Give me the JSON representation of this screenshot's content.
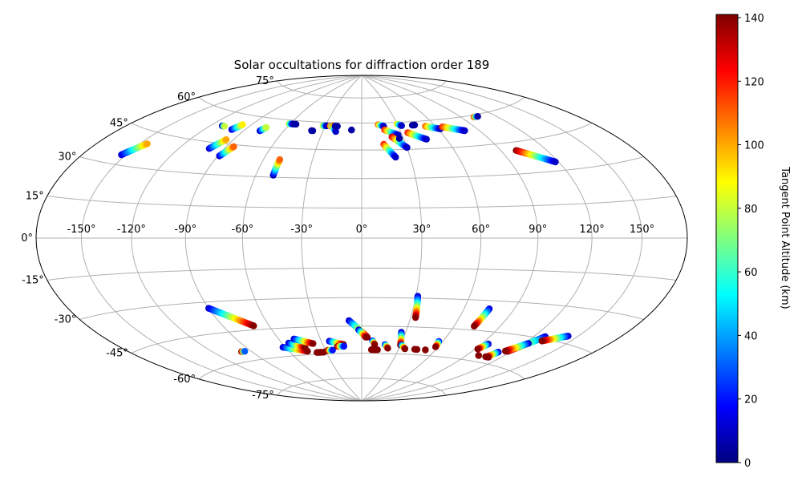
{
  "chart_data": {
    "type": "scatter",
    "projection": "hammer",
    "title": "Solar occultations for diffraction order 189",
    "xlabel": "",
    "ylabel": "",
    "grid": true,
    "lon_ticks": [
      -150,
      -120,
      -90,
      -60,
      -30,
      0,
      30,
      60,
      90,
      120,
      150
    ],
    "lon_tick_labels": [
      "-150°",
      "-120°",
      "-90°",
      "-60°",
      "-30°",
      "0°",
      "30°",
      "60°",
      "90°",
      "120°",
      "150°"
    ],
    "lat_ticks": [
      75,
      60,
      45,
      30,
      15,
      0,
      -15,
      -30,
      -45,
      -60,
      -75
    ],
    "lat_tick_labels": [
      "75°",
      "60°",
      "45°",
      "30°",
      "15°",
      "0°",
      "-15°",
      "-30°",
      "-45°",
      "-60°",
      "-75°"
    ],
    "colorbar": {
      "label": "Tangent Point Altitude (km)",
      "colormap": "jet",
      "range": [
        0,
        141
      ],
      "ticks": [
        0,
        20,
        40,
        60,
        80,
        100,
        120,
        140
      ],
      "tick_labels": [
        "0",
        "20",
        "40",
        "60",
        "80",
        "100",
        "120",
        "140"
      ]
    },
    "series": [
      {
        "lon_start": -153,
        "lat_start": 34,
        "lon_end": -145,
        "lat_end": 40,
        "alt_start": 10,
        "alt_end": 100
      },
      {
        "lon_start": -111,
        "lat_start": 53,
        "lon_end": -109,
        "lat_end": 53,
        "alt_start": 5,
        "alt_end": 80
      },
      {
        "lon_start": -100,
        "lat_start": 52,
        "lon_end": -97,
        "lat_end": 55,
        "alt_start": 10,
        "alt_end": 90
      },
      {
        "lon_start": -100,
        "lat_start": 42,
        "lon_end": -95,
        "lat_end": 47,
        "alt_start": 10,
        "alt_end": 100
      },
      {
        "lon_start": -89,
        "lat_start": 39,
        "lon_end": -85,
        "lat_end": 44,
        "alt_start": 10,
        "alt_end": 110
      },
      {
        "lon_start": -78,
        "lat_start": 53,
        "lon_end": -76,
        "lat_end": 55,
        "alt_start": 10,
        "alt_end": 80
      },
      {
        "lon_start": -61,
        "lat_start": 58,
        "lon_end": -58,
        "lat_end": 58,
        "alt_start": 80,
        "alt_end": 10
      },
      {
        "lon_start": -57,
        "lat_start": 58,
        "lon_end": -55,
        "lat_end": 58,
        "alt_start": 5,
        "alt_end": 5
      },
      {
        "lon_start": -50,
        "lat_start": 31,
        "lon_end": -50,
        "lat_end": 39,
        "alt_start": 5,
        "alt_end": 110
      },
      {
        "lon_start": -39,
        "lat_start": 55,
        "lon_end": -38,
        "lat_end": 55,
        "alt_start": 5,
        "alt_end": 5
      },
      {
        "lon_start": -32,
        "lat_start": 58,
        "lon_end": -29,
        "lat_end": 58,
        "alt_start": 80,
        "alt_end": 10
      },
      {
        "lon_start": -26,
        "lat_start": 58,
        "lon_end": -23,
        "lat_end": 58,
        "alt_start": 110,
        "alt_end": 5
      },
      {
        "lon_start": -24,
        "lat_start": 58,
        "lon_end": -20,
        "lat_end": 55,
        "alt_start": 110,
        "alt_end": 10
      },
      {
        "lon_start": -22,
        "lat_start": 58,
        "lon_end": -20,
        "lat_end": 58,
        "alt_start": 5,
        "alt_end": 5
      },
      {
        "lon_start": -8,
        "lat_start": 56,
        "lon_end": -8,
        "lat_end": 56,
        "alt_start": 5,
        "alt_end": 5
      },
      {
        "lon_start": 14,
        "lat_start": 59,
        "lon_end": 18,
        "lat_end": 58,
        "alt_start": 110,
        "alt_end": 10
      },
      {
        "lon_start": 18,
        "lat_start": 56,
        "lon_end": 27,
        "lat_end": 53,
        "alt_start": 120,
        "alt_end": 10
      },
      {
        "lon_start": 22,
        "lat_start": 52,
        "lon_end": 30,
        "lat_end": 46,
        "alt_start": 130,
        "alt_end": 10
      },
      {
        "lon_start": 15,
        "lat_start": 48,
        "lon_end": 21,
        "lat_end": 41,
        "alt_start": 120,
        "alt_end": 10
      },
      {
        "lon_start": 27,
        "lat_start": 51,
        "lon_end": 27,
        "lat_end": 51,
        "alt_start": 5,
        "alt_end": 5
      },
      {
        "lon_start": 30,
        "lat_start": 59,
        "lon_end": 33,
        "lat_end": 58,
        "alt_start": 90,
        "alt_end": 10
      },
      {
        "lon_start": 35,
        "lat_start": 54,
        "lon_end": 46,
        "lat_end": 50,
        "alt_start": 120,
        "alt_end": 10
      },
      {
        "lon_start": 42,
        "lat_start": 58,
        "lon_end": 44,
        "lat_end": 58,
        "alt_start": 5,
        "alt_end": 5
      },
      {
        "lon_start": 52,
        "lat_start": 57,
        "lon_end": 62,
        "lat_end": 55,
        "alt_start": 110,
        "alt_end": 10
      },
      {
        "lon_start": 65,
        "lat_start": 56,
        "lon_end": 79,
        "lat_end": 53,
        "alt_start": 120,
        "alt_end": 10
      },
      {
        "lon_start": 101,
        "lat_start": 59,
        "lon_end": 105,
        "lat_end": 59,
        "alt_start": 110,
        "alt_end": 5
      },
      {
        "lon_start": 100,
        "lat_start": 41,
        "lon_end": 118,
        "lat_end": 34,
        "alt_start": 140,
        "alt_end": 10
      },
      {
        "lon_start": -98,
        "lat_start": -55,
        "lon_end": -95,
        "lat_end": -55,
        "alt_start": 140,
        "alt_end": 30
      },
      {
        "lon_start": -90,
        "lat_start": -33,
        "lon_end": -70,
        "lat_end": -43,
        "alt_start": 10,
        "alt_end": 140
      },
      {
        "lon_start": -62,
        "lat_start": -55,
        "lon_end": -45,
        "lat_end": -58,
        "alt_start": 10,
        "alt_end": 140
      },
      {
        "lon_start": -55,
        "lat_start": -53,
        "lon_end": -45,
        "lat_end": -56,
        "alt_start": 10,
        "alt_end": 140
      },
      {
        "lon_start": -49,
        "lat_start": -51,
        "lon_end": -37,
        "lat_end": -54,
        "alt_start": 10,
        "alt_end": 140
      },
      {
        "lon_start": -38,
        "lat_start": -59,
        "lon_end": -32,
        "lat_end": -59,
        "alt_start": 140,
        "alt_end": 140
      },
      {
        "lon_start": -28,
        "lat_start": -58,
        "lon_end": -24,
        "lat_end": -58,
        "alt_start": 140,
        "alt_end": 20
      },
      {
        "lon_start": -24,
        "lat_start": -53,
        "lon_end": -14,
        "lat_end": -55,
        "alt_start": 10,
        "alt_end": 140
      },
      {
        "lon_start": -19,
        "lat_start": -56,
        "lon_end": -14,
        "lat_end": -56,
        "alt_start": 140,
        "alt_end": 20
      },
      {
        "lon_start": -8,
        "lat_start": -42,
        "lon_end": 4,
        "lat_end": -51,
        "alt_start": 10,
        "alt_end": 140
      },
      {
        "lon_start": -2,
        "lat_start": -47,
        "lon_end": 3,
        "lat_end": -51,
        "alt_start": 10,
        "alt_end": 140
      },
      {
        "lon_start": 8,
        "lat_start": -53,
        "lon_end": 10,
        "lat_end": -55,
        "alt_start": 20,
        "alt_end": 140
      },
      {
        "lon_start": 8,
        "lat_start": -58,
        "lon_end": 13,
        "lat_end": -58,
        "alt_start": 140,
        "alt_end": 140
      },
      {
        "lon_start": 18,
        "lat_start": -55,
        "lon_end": 21,
        "lat_end": -57,
        "alt_start": 20,
        "alt_end": 140
      },
      {
        "lon_start": 31,
        "lat_start": -29,
        "lon_end": 33,
        "lat_end": -40,
        "alt_start": 10,
        "alt_end": 140
      },
      {
        "lon_start": 27,
        "lat_start": -48,
        "lon_end": 30,
        "lat_end": -55,
        "alt_start": 10,
        "alt_end": 140
      },
      {
        "lon_start": 31,
        "lat_start": -55,
        "lon_end": 35,
        "lat_end": -57,
        "alt_start": 30,
        "alt_end": 140
      },
      {
        "lon_start": 43,
        "lat_start": -57,
        "lon_end": 45,
        "lat_end": -57,
        "alt_start": 140,
        "alt_end": 140
      },
      {
        "lon_start": 52,
        "lat_start": -57,
        "lon_end": 52,
        "lat_end": -57,
        "alt_start": 140,
        "alt_end": 140
      },
      {
        "lon_start": 57,
        "lat_start": -52,
        "lon_end": 58,
        "lat_end": -55,
        "alt_start": 20,
        "alt_end": 140
      },
      {
        "lon_start": 75,
        "lat_start": -34,
        "lon_end": 73,
        "lat_end": -43,
        "alt_start": 10,
        "alt_end": 140
      },
      {
        "lon_start": 95,
        "lat_start": -51,
        "lon_end": 92,
        "lat_end": -54,
        "alt_start": 10,
        "alt_end": 140
      },
      {
        "lon_start": 100,
        "lat_start": -57,
        "lon_end": 100,
        "lat_end": -57,
        "alt_start": 140,
        "alt_end": 140
      },
      {
        "lon_start": 111,
        "lat_start": -54,
        "lon_end": 108,
        "lat_end": -57,
        "alt_start": 10,
        "alt_end": 140
      },
      {
        "lon_start": 107,
        "lat_start": -57,
        "lon_end": 110,
        "lat_end": -57,
        "alt_start": 140,
        "alt_end": 140
      },
      {
        "lon_start": 128,
        "lat_start": -44,
        "lon_end": 117,
        "lat_end": -53,
        "alt_start": 10,
        "alt_end": 140
      },
      {
        "lon_start": 123,
        "lat_start": -48,
        "lon_end": 115,
        "lat_end": -53,
        "alt_start": 10,
        "alt_end": 140
      },
      {
        "lon_start": 143,
        "lat_start": -42,
        "lon_end": 130,
        "lat_end": -46,
        "alt_start": 10,
        "alt_end": 140
      }
    ]
  }
}
